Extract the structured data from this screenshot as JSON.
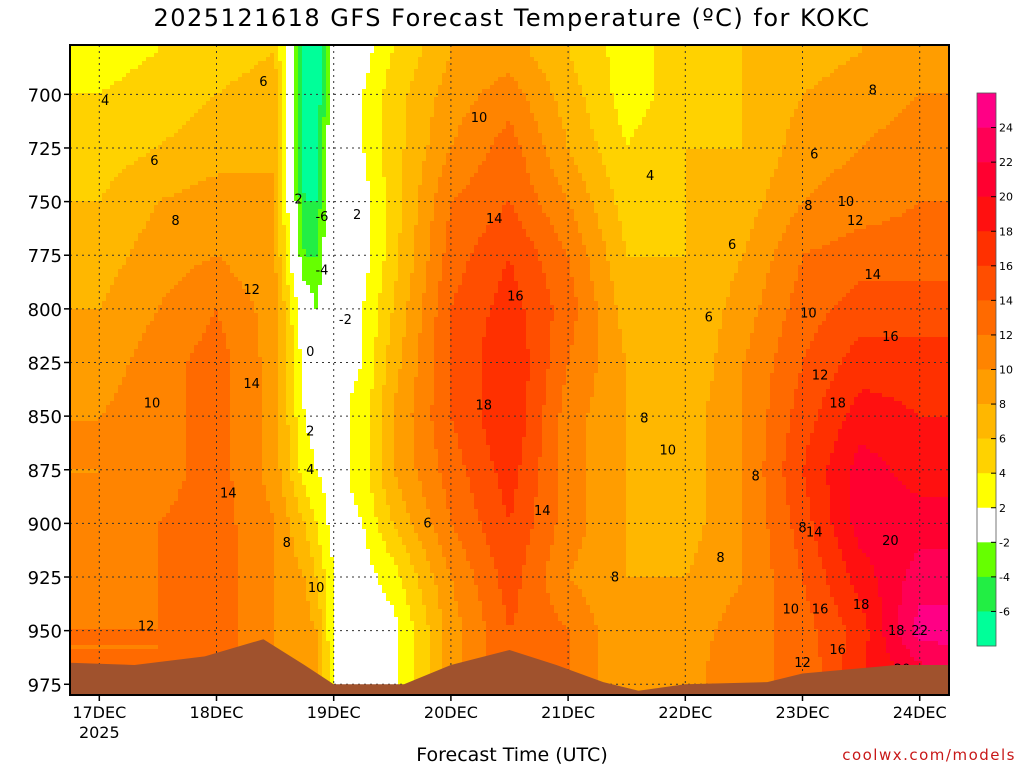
{
  "title": "2025121618 GFS Forecast Temperature (ºC) for KOKC",
  "xlabel": "Forecast Time (UTC)",
  "credit": "coolwx.com/models",
  "chart_data": {
    "type": "heatmap",
    "title": "2025121618 GFS Forecast Temperature (ºC) for KOKC",
    "xlabel": "Forecast Time (UTC)",
    "ylabel": "",
    "x_ticks": [
      "17DEC\n2025",
      "18DEC",
      "19DEC",
      "20DEC",
      "21DEC",
      "22DEC",
      "23DEC",
      "24DEC"
    ],
    "x_tick_days": [
      17,
      18,
      19,
      20,
      21,
      22,
      23,
      24
    ],
    "xlim_days": [
      16.75,
      24.25
    ],
    "y_ticks": [
      700,
      725,
      750,
      775,
      800,
      825,
      850,
      875,
      900,
      925,
      950,
      975
    ],
    "ylim_hpa": [
      980,
      677
    ],
    "pressure_axis_reversed": true,
    "grid": true,
    "colorbar": {
      "placement": "right",
      "labels": [
        24,
        22,
        20,
        18,
        16,
        14,
        12,
        10,
        8,
        6,
        4,
        2,
        -2,
        -4,
        -6
      ],
      "bins": [
        {
          "from": 24,
          "to": 26,
          "color": "#ff0085"
        },
        {
          "from": 22,
          "to": 24,
          "color": "#ff0055"
        },
        {
          "from": 20,
          "to": 22,
          "color": "#ff0030"
        },
        {
          "from": 18,
          "to": 20,
          "color": "#ff1010"
        },
        {
          "from": 16,
          "to": 18,
          "color": "#ff3000"
        },
        {
          "from": 14,
          "to": 16,
          "color": "#ff4e00"
        },
        {
          "from": 12,
          "to": 14,
          "color": "#ff6a00"
        },
        {
          "from": 10,
          "to": 12,
          "color": "#ff8400"
        },
        {
          "from": 8,
          "to": 10,
          "color": "#ff9d00"
        },
        {
          "from": 6,
          "to": 8,
          "color": "#ffb700"
        },
        {
          "from": 4,
          "to": 6,
          "color": "#ffd200"
        },
        {
          "from": 2,
          "to": 4,
          "color": "#ffff00"
        },
        {
          "from": -2,
          "to": 2,
          "color": "#ffffff"
        },
        {
          "from": -4,
          "to": -2,
          "color": "#66ff00"
        },
        {
          "from": -6,
          "to": -4,
          "color": "#22ee44"
        },
        {
          "from": -8,
          "to": -6,
          "color": "#00ff99"
        }
      ]
    },
    "temperature_field": {
      "times_days": [
        17.0,
        17.5,
        18.0,
        18.5,
        18.75,
        18.85,
        19.0,
        19.25,
        19.5,
        20.0,
        20.5,
        21.0,
        21.5,
        22.0,
        22.5,
        23.0,
        23.5,
        24.0,
        24.25
      ],
      "levels_hpa": [
        680,
        700,
        725,
        750,
        775,
        800,
        825,
        850,
        875,
        900,
        925,
        950,
        975
      ],
      "values_c": [
        [
          3,
          4,
          5,
          6,
          7,
          8,
          9,
          10,
          10,
          10,
          11,
          12,
          12
        ],
        [
          4,
          5,
          6,
          8,
          9,
          10,
          11,
          11,
          11,
          12,
          12,
          12,
          12
        ],
        [
          5,
          6,
          7,
          9,
          10,
          12,
          13,
          13,
          13,
          13,
          13,
          13,
          13
        ],
        [
          6,
          7,
          8,
          8,
          8,
          9,
          9,
          9,
          9,
          10,
          10,
          10,
          10
        ],
        [
          -7,
          -7,
          -7,
          -6,
          -4,
          0,
          1,
          2,
          3,
          6,
          8,
          9,
          10
        ],
        [
          -8,
          -8,
          -7,
          -6,
          -4,
          -2,
          0,
          1,
          2,
          4,
          6,
          8,
          9
        ],
        [
          -1,
          0,
          1,
          2,
          1,
          1,
          1,
          1,
          1,
          1,
          2,
          2,
          2
        ],
        [
          1,
          2,
          2,
          1,
          1,
          2,
          2,
          3,
          3,
          2,
          1,
          1,
          1
        ],
        [
          4,
          5,
          5,
          5,
          5,
          6,
          7,
          8,
          8,
          6,
          3,
          1,
          1
        ],
        [
          8,
          9,
          10,
          12,
          13,
          14,
          14,
          14,
          13,
          12,
          10,
          9,
          9
        ],
        [
          9,
          11,
          13,
          14,
          16,
          17,
          18,
          18,
          17,
          16,
          15,
          14,
          14
        ],
        [
          6,
          7,
          8,
          10,
          12,
          13,
          12,
          11,
          11,
          11,
          10,
          12,
          12
        ],
        [
          3,
          3,
          4,
          5,
          6,
          7,
          8,
          8,
          8,
          8,
          8,
          8,
          8
        ],
        [
          5,
          5,
          6,
          6,
          6,
          6,
          6,
          7,
          7,
          7,
          8,
          9,
          9
        ],
        [
          6,
          6,
          6,
          7,
          8,
          9,
          10,
          10,
          10,
          10,
          10,
          11,
          12
        ],
        [
          7,
          8,
          9,
          10,
          12,
          13,
          14,
          15,
          16,
          15,
          14,
          13,
          12
        ],
        [
          8,
          9,
          10,
          11,
          13,
          15,
          17,
          19,
          21,
          21,
          19,
          17,
          18
        ],
        [
          9,
          10,
          11,
          12,
          13,
          15,
          17,
          18,
          19,
          21,
          23,
          25,
          20
        ],
        [
          9,
          10,
          11,
          12,
          13,
          15,
          17,
          18,
          19,
          21,
          23,
          25,
          21
        ]
      ]
    },
    "contour_labels": [
      {
        "value": "4",
        "day": 17.05,
        "hpa": 705
      },
      {
        "value": "6",
        "day": 17.47,
        "hpa": 733
      },
      {
        "value": "8",
        "day": 17.65,
        "hpa": 761
      },
      {
        "value": "12",
        "day": 18.3,
        "hpa": 793
      },
      {
        "value": "14",
        "day": 18.3,
        "hpa": 837
      },
      {
        "value": "10",
        "day": 17.45,
        "hpa": 846
      },
      {
        "value": "6",
        "day": 18.4,
        "hpa": 696
      },
      {
        "value": "2",
        "day": 18.7,
        "hpa": 751
      },
      {
        "value": "-6",
        "day": 18.9,
        "hpa": 759
      },
      {
        "value": "-4",
        "day": 18.9,
        "hpa": 784
      },
      {
        "value": "2",
        "day": 19.2,
        "hpa": 758
      },
      {
        "value": "-2",
        "day": 19.1,
        "hpa": 807
      },
      {
        "value": "0",
        "day": 18.8,
        "hpa": 822
      },
      {
        "value": "2",
        "day": 18.8,
        "hpa": 859
      },
      {
        "value": "4",
        "day": 18.8,
        "hpa": 877
      },
      {
        "value": "8",
        "day": 18.6,
        "hpa": 911
      },
      {
        "value": "10",
        "day": 18.85,
        "hpa": 932
      },
      {
        "value": "12",
        "day": 17.4,
        "hpa": 950
      },
      {
        "value": "6",
        "day": 19.8,
        "hpa": 902
      },
      {
        "value": "10",
        "day": 20.24,
        "hpa": 713
      },
      {
        "value": "14",
        "day": 20.37,
        "hpa": 760
      },
      {
        "value": "16",
        "day": 20.55,
        "hpa": 796
      },
      {
        "value": "18",
        "day": 20.28,
        "hpa": 847
      },
      {
        "value": "14",
        "day": 20.78,
        "hpa": 896
      },
      {
        "value": "4",
        "day": 21.7,
        "hpa": 740
      },
      {
        "value": "10",
        "day": 21.85,
        "hpa": 868
      },
      {
        "value": "8",
        "day": 21.65,
        "hpa": 853
      },
      {
        "value": "6",
        "day": 22.2,
        "hpa": 806
      },
      {
        "value": "6",
        "day": 22.4,
        "hpa": 772
      },
      {
        "value": "8",
        "day": 21.4,
        "hpa": 927
      },
      {
        "value": "8",
        "day": 22.3,
        "hpa": 918
      },
      {
        "value": "8",
        "day": 22.6,
        "hpa": 880
      },
      {
        "value": "6",
        "day": 23.1,
        "hpa": 730
      },
      {
        "value": "8",
        "day": 23.6,
        "hpa": 700
      },
      {
        "value": "8",
        "day": 23.05,
        "hpa": 754
      },
      {
        "value": "10",
        "day": 23.37,
        "hpa": 752
      },
      {
        "value": "12",
        "day": 23.45,
        "hpa": 761
      },
      {
        "value": "14",
        "day": 23.6,
        "hpa": 786
      },
      {
        "value": "16",
        "day": 23.75,
        "hpa": 815
      },
      {
        "value": "10",
        "day": 23.05,
        "hpa": 804
      },
      {
        "value": "12",
        "day": 23.15,
        "hpa": 833
      },
      {
        "value": "18",
        "day": 23.3,
        "hpa": 846
      },
      {
        "value": "8",
        "day": 23.0,
        "hpa": 904
      },
      {
        "value": "14",
        "day": 23.1,
        "hpa": 906
      },
      {
        "value": "10",
        "day": 22.9,
        "hpa": 942
      },
      {
        "value": "16",
        "day": 23.15,
        "hpa": 942
      },
      {
        "value": "16",
        "day": 23.3,
        "hpa": 961
      },
      {
        "value": "12",
        "day": 23.0,
        "hpa": 967
      },
      {
        "value": "18",
        "day": 23.5,
        "hpa": 940
      },
      {
        "value": "20",
        "day": 23.75,
        "hpa": 910
      },
      {
        "value": "18",
        "day": 23.8,
        "hpa": 952
      },
      {
        "value": "22",
        "day": 24.0,
        "hpa": 952
      },
      {
        "value": "20",
        "day": 23.85,
        "hpa": 970
      },
      {
        "value": "14",
        "day": 18.1,
        "hpa": 888
      }
    ]
  }
}
